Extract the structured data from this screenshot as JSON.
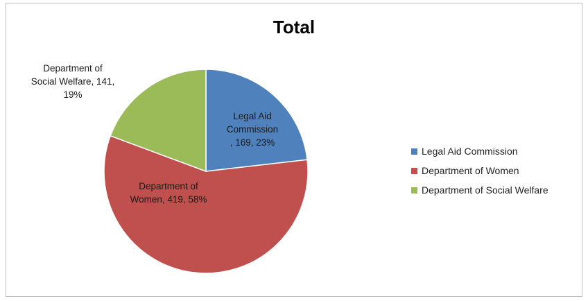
{
  "chart_data": {
    "type": "pie",
    "title": "Total",
    "slices": [
      {
        "name": "Legal Aid Commission",
        "value": 169,
        "percent": "23%",
        "color": "#4f81bd",
        "label_lines": [
          "Legal Aid",
          "Commission",
          ", 169, 23%"
        ]
      },
      {
        "name": "Department of Women",
        "value": 419,
        "percent": "58%",
        "color": "#c0504d",
        "label_lines": [
          "Department of",
          "Women, 419, 58%"
        ]
      },
      {
        "name": "Department of Social Welfare",
        "value": 141,
        "percent": "19%",
        "color": "#9bbb59",
        "label_lines": [
          "Department of",
          "Social Welfare, 141,",
          "19%"
        ]
      }
    ],
    "start_angle": "12 o'clock",
    "direction": "clockwise",
    "legend_position": "right"
  }
}
